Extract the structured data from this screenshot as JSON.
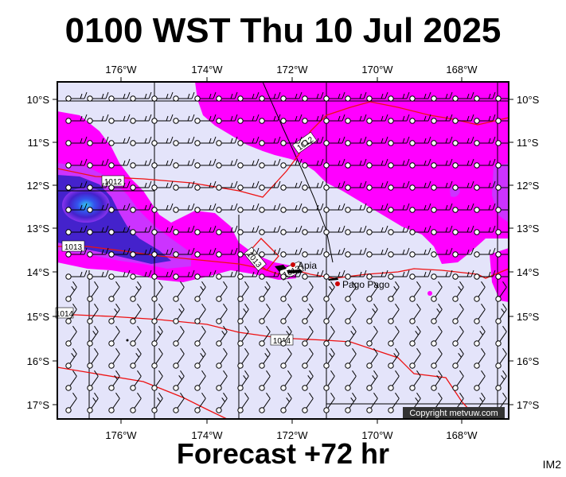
{
  "header": {
    "title": "0100 WST Thu 10 Jul 2025"
  },
  "footer": {
    "forecast": "Forecast +72 hr",
    "tag": "IM2"
  },
  "map": {
    "lon_ticks": [
      "176°W",
      "174°W",
      "172°W",
      "170°W",
      "168°W"
    ],
    "lat_ticks": [
      "10°S",
      "11°S",
      "12°S",
      "13°S",
      "14°S",
      "15°S",
      "16°S",
      "17°S"
    ],
    "places": [
      {
        "name": "Apia"
      },
      {
        "name": "Pago Pago"
      }
    ],
    "isobar_labels": [
      "1012",
      "1012",
      "1013",
      "1013",
      "1013",
      "1014",
      "1014"
    ],
    "copyright": "Copyright metvuw.com",
    "colors": {
      "background": "#e4e4fa",
      "wind_magenta": "#ff00ff",
      "wind_purple": "#cc33ff",
      "wind_blue": "#3322dd",
      "wind_cyan": "#33aaee",
      "isobar": "#ee1111"
    }
  }
}
